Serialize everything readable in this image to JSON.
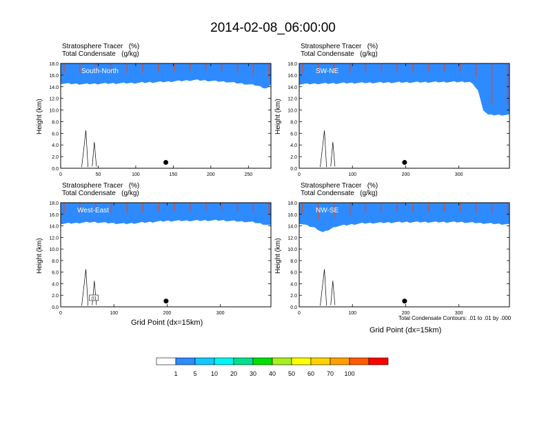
{
  "title": "2014-02-08_06:00:00",
  "x_axis_label": "Grid Point (dx=15km)",
  "contour_note": "Total Condensate Contours: .01 to .01 by .000",
  "colors": {
    "levels": [
      "#ffffff",
      "#2e8bff",
      "#14c8ff",
      "#00f5f5",
      "#00e090",
      "#00e000",
      "#a8f01e",
      "#ffff00",
      "#ffd400",
      "#ffa000",
      "#ff5a00",
      "#ff0000"
    ],
    "accent": "#000000"
  },
  "colorbar": {
    "labels": [
      "1",
      "5",
      "10",
      "20",
      "30",
      "40",
      "50",
      "60",
      "70",
      "100"
    ]
  },
  "chart_data": [
    {
      "type": "heatmap",
      "panel": "top-left",
      "title_line1": "Stratosphere Tracer   (%)",
      "title_line2": "Total Condensate   (g/kg)",
      "cross_section": "South-North",
      "ylabel": "Height (km)",
      "xlim": [
        0,
        280
      ],
      "ylim": [
        0,
        18
      ],
      "xticks": [
        0,
        50,
        100,
        150,
        200,
        250
      ],
      "yticks": [
        "0.0",
        "2.0",
        "4.0",
        "6.0",
        "8.0",
        "10.0",
        "12.0",
        "14.0",
        "16.0",
        "18.0"
      ],
      "tropopause_km": [
        [
          0,
          15.9
        ],
        [
          30,
          15.8
        ],
        [
          60,
          15.9
        ],
        [
          100,
          16.0
        ],
        [
          140,
          16.2
        ],
        [
          180,
          16.5
        ],
        [
          220,
          16.2
        ],
        [
          260,
          15.6
        ],
        [
          275,
          15.0
        ],
        [
          280,
          15.7
        ]
      ],
      "marker": {
        "x": 140,
        "y": 1.0
      },
      "contour_label": ""
    },
    {
      "type": "heatmap",
      "panel": "top-right",
      "title_line1": "Stratosphere Tracer   (%)",
      "title_line2": "Total Condensate   (g/kg)",
      "cross_section": "SW-NE",
      "ylabel": "Height (km)",
      "xlim": [
        0,
        395
      ],
      "ylim": [
        0,
        18
      ],
      "xticks": [
        0,
        100,
        200,
        300
      ],
      "yticks": [
        "0.0",
        "2.0",
        "4.0",
        "6.0",
        "8.0",
        "10.0",
        "12.0",
        "14.0",
        "16.0",
        "18.0"
      ],
      "tropopause_km": [
        [
          0,
          15.8
        ],
        [
          100,
          16.0
        ],
        [
          200,
          16.1
        ],
        [
          320,
          16.2
        ],
        [
          335,
          15.0
        ],
        [
          345,
          11.5
        ],
        [
          355,
          10.5
        ],
        [
          395,
          10.5
        ]
      ],
      "marker": {
        "x": 198,
        "y": 1.0
      },
      "contour_label": ""
    },
    {
      "type": "heatmap",
      "panel": "bottom-left",
      "title_line1": "Stratosphere Tracer   (%)",
      "title_line2": "Total Condensate   (g/kg)",
      "cross_section": "West-East",
      "ylabel": "Height (km)",
      "xlim": [
        0,
        395
      ],
      "ylim": [
        0,
        18
      ],
      "xticks": [
        0,
        100,
        200,
        300
      ],
      "yticks": [
        "0.0",
        "2.0",
        "4.0",
        "6.0",
        "8.0",
        "10.0",
        "12.0",
        "14.0",
        "16.0",
        "18.0"
      ],
      "tropopause_km": [
        [
          0,
          15.7
        ],
        [
          60,
          16.0
        ],
        [
          120,
          15.7
        ],
        [
          200,
          16.2
        ],
        [
          300,
          16.3
        ],
        [
          360,
          16.0
        ],
        [
          395,
          15.4
        ]
      ],
      "marker": {
        "x": 198,
        "y": 1.0
      },
      "contour_label": ".01"
    },
    {
      "type": "heatmap",
      "panel": "bottom-right",
      "title_line1": "Stratosphere Tracer   (%)",
      "title_line2": "Total Condensate   (g/kg)",
      "cross_section": "NW-SE",
      "ylabel": "Height (km)",
      "xlim": [
        0,
        395
      ],
      "ylim": [
        0,
        18
      ],
      "xticks": [
        0,
        100,
        200,
        300
      ],
      "yticks": [
        "0.0",
        "2.0",
        "4.0",
        "6.0",
        "8.0",
        "10.0",
        "12.0",
        "14.0",
        "16.0",
        "18.0"
      ],
      "tropopause_km": [
        [
          0,
          15.8
        ],
        [
          30,
          15.0
        ],
        [
          45,
          14.2
        ],
        [
          70,
          15.3
        ],
        [
          120,
          15.8
        ],
        [
          200,
          16.0
        ],
        [
          300,
          16.0
        ],
        [
          395,
          15.6
        ]
      ],
      "marker": {
        "x": 198,
        "y": 1.0
      },
      "contour_label": ""
    }
  ]
}
